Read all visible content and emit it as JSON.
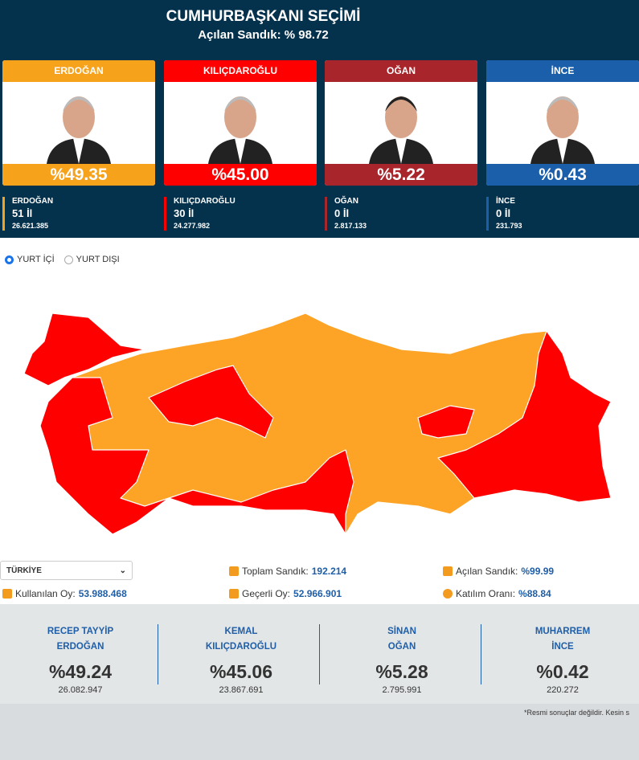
{
  "header": {
    "title": "CUMHURBAŞKANI SEÇİMİ",
    "subtitle": "Açılan Sandık: % 98.72"
  },
  "candidates": [
    {
      "name": "ERDOĞAN",
      "percent": "%49.35",
      "provinces": "51 İl",
      "votes": "26.621.385",
      "color": "#f7a21b"
    },
    {
      "name": "KILIÇDAROĞLU",
      "percent": "%45.00",
      "provinces": "30 İl",
      "votes": "24.277.982",
      "color": "#fe0000"
    },
    {
      "name": "OĞAN",
      "percent": "%5.22",
      "provinces": "0 İl",
      "votes": "2.817.133",
      "color": "#a8252b"
    },
    {
      "name": "İNCE",
      "percent": "%0.43",
      "provinces": "0 İl",
      "votes": "231.793",
      "color": "#1b5ea9"
    }
  ],
  "tabs": [
    {
      "label": "YURT İÇİ",
      "selected": true
    },
    {
      "label": "YURT DIŞI",
      "selected": false
    }
  ],
  "map": {
    "colors": {
      "erdogan": "#fda427",
      "kilicdaroglu": "#ff0000"
    }
  },
  "region_select": {
    "value": "TÜRKİYE"
  },
  "summary": {
    "total_boxes": {
      "label": "Toplam Sandık:",
      "value": "192.214"
    },
    "opened_boxes": {
      "label": "Açılan Sandık:",
      "value": "%99.99"
    },
    "used_votes": {
      "label": "Kullanılan Oy:",
      "value": "53.988.468"
    },
    "valid_votes": {
      "label": "Geçerli Oy:",
      "value": "52.966.901"
    },
    "turnout": {
      "label": "Katılım Oranı:",
      "value": "%88.84"
    }
  },
  "official": [
    {
      "first": "RECEP TAYYİP",
      "last": "ERDOĞAN",
      "percent": "%49.24",
      "votes": "26.082.947"
    },
    {
      "first": "KEMAL",
      "last": "KILIÇDAROĞLU",
      "percent": "%45.06",
      "votes": "23.867.691"
    },
    {
      "first": "SİNAN",
      "last": "OĞAN",
      "percent": "%5.28",
      "votes": "2.795.991"
    },
    {
      "first": "MUHARREM",
      "last": "İNCE",
      "percent": "%0.42",
      "votes": "220.272"
    }
  ],
  "footnote": "*Resmi sonuçlar değildir. Kesin s"
}
